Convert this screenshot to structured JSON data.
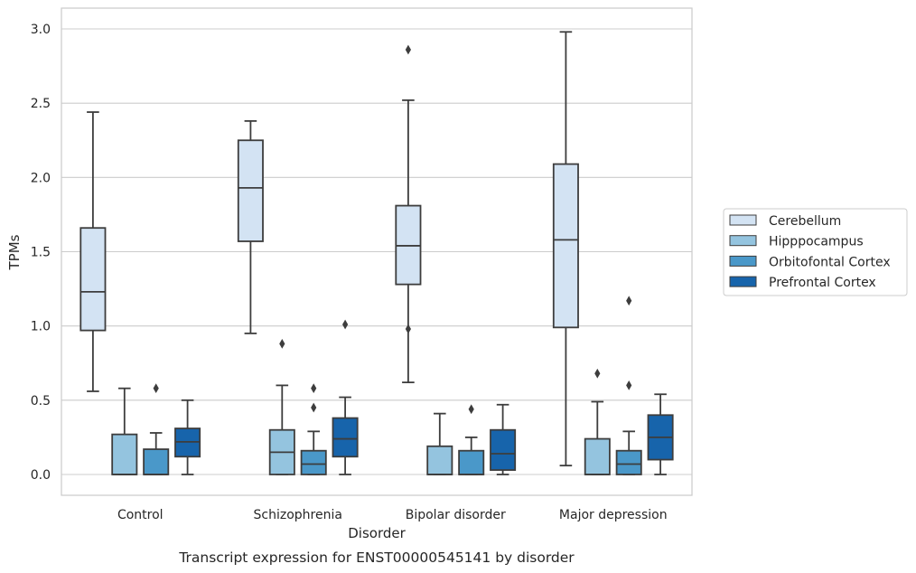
{
  "chart_data": {
    "type": "box",
    "title": "",
    "caption": "Transcript expression for ENST00000545141 by disorder",
    "xlabel": "Disorder",
    "ylabel": "TPMs",
    "ylim": [
      -0.14,
      3.14
    ],
    "yticks": [
      0.0,
      0.5,
      1.0,
      1.5,
      2.0,
      2.5,
      3.0
    ],
    "ytick_labels": [
      "0.0",
      "0.5",
      "1.0",
      "1.5",
      "2.0",
      "2.5",
      "3.0"
    ],
    "grid": "horizontal",
    "legend_position": "right-center",
    "categories": [
      "Control",
      "Schizophrenia",
      "Bipolar disorder",
      "Major depression"
    ],
    "series": [
      {
        "name": "Cerebellum",
        "color": "#d3e3f3",
        "boxes": [
          {
            "min": 0.56,
            "q1": 0.97,
            "median": 1.23,
            "q3": 1.66,
            "max": 2.44,
            "outliers": []
          },
          {
            "min": 0.95,
            "q1": 1.57,
            "median": 1.93,
            "q3": 2.25,
            "max": 2.38,
            "outliers": []
          },
          {
            "min": 0.62,
            "q1": 1.28,
            "median": 1.54,
            "q3": 1.81,
            "max": 2.52,
            "outliers": [
              2.86,
              0.98
            ]
          },
          {
            "min": 0.06,
            "q1": 0.99,
            "median": 1.58,
            "q3": 2.09,
            "max": 2.98,
            "outliers": []
          }
        ]
      },
      {
        "name": "Hipppocampus",
        "color": "#94c4df",
        "boxes": [
          {
            "min": 0.0,
            "q1": 0.0,
            "median": 0.0,
            "q3": 0.27,
            "max": 0.58,
            "outliers": []
          },
          {
            "min": 0.0,
            "q1": 0.0,
            "median": 0.15,
            "q3": 0.3,
            "max": 0.6,
            "outliers": [
              0.88
            ]
          },
          {
            "min": 0.0,
            "q1": 0.0,
            "median": 0.0,
            "q3": 0.19,
            "max": 0.41,
            "outliers": []
          },
          {
            "min": 0.0,
            "q1": 0.0,
            "median": 0.0,
            "q3": 0.24,
            "max": 0.49,
            "outliers": [
              0.68
            ]
          }
        ]
      },
      {
        "name": "Orbitofontal Cortex",
        "color": "#4a98c9",
        "boxes": [
          {
            "min": 0.0,
            "q1": 0.0,
            "median": 0.0,
            "q3": 0.17,
            "max": 0.28,
            "outliers": [
              0.58
            ]
          },
          {
            "min": 0.0,
            "q1": 0.0,
            "median": 0.07,
            "q3": 0.16,
            "max": 0.29,
            "outliers": [
              0.58,
              0.45
            ]
          },
          {
            "min": 0.0,
            "q1": 0.0,
            "median": 0.0,
            "q3": 0.16,
            "max": 0.25,
            "outliers": [
              0.44
            ]
          },
          {
            "min": 0.0,
            "q1": 0.0,
            "median": 0.07,
            "q3": 0.16,
            "max": 0.29,
            "outliers": [
              1.17,
              0.6
            ]
          }
        ]
      },
      {
        "name": "Prefrontal Cortex",
        "color": "#1764ab",
        "boxes": [
          {
            "min": 0.0,
            "q1": 0.12,
            "median": 0.22,
            "q3": 0.31,
            "max": 0.5,
            "outliers": []
          },
          {
            "min": 0.0,
            "q1": 0.12,
            "median": 0.24,
            "q3": 0.38,
            "max": 0.52,
            "outliers": [
              1.01
            ]
          },
          {
            "min": 0.0,
            "q1": 0.03,
            "median": 0.14,
            "q3": 0.3,
            "max": 0.47,
            "outliers": []
          },
          {
            "min": 0.0,
            "q1": 0.1,
            "median": 0.25,
            "q3": 0.4,
            "max": 0.54,
            "outliers": []
          }
        ]
      }
    ]
  }
}
